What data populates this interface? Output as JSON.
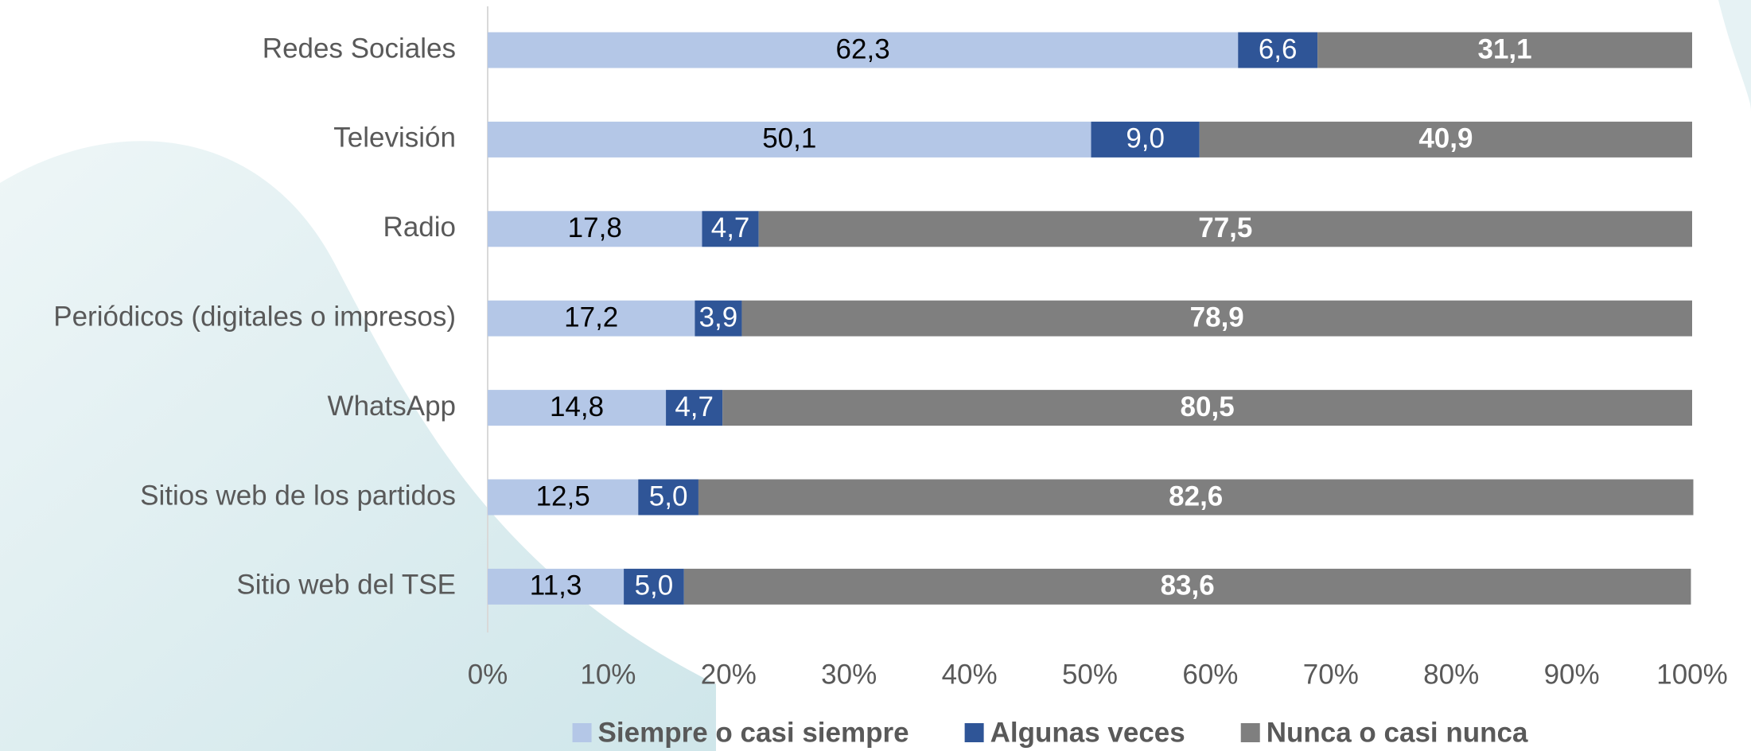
{
  "chart_data": {
    "type": "stacked-bar-horizontal",
    "categories": [
      "Redes Sociales",
      "Televisión",
      "Radio",
      "Periódicos (digitales o impresos)",
      "WhatsApp",
      "Sitios web de los partidos",
      "Sitio web del TSE"
    ],
    "series": [
      {
        "name": "Siempre o casi siempre",
        "color": "#b4c7e7",
        "values": [
          62.3,
          50.1,
          17.8,
          17.2,
          14.8,
          12.5,
          11.3
        ],
        "value_labels": [
          "62,3",
          "50,1",
          "17,8",
          "17,2",
          "14,8",
          "12,5",
          "11,3"
        ]
      },
      {
        "name": "Algunas veces",
        "color": "#2f5597",
        "values": [
          6.6,
          9.0,
          4.7,
          3.9,
          4.7,
          5.0,
          5.0
        ],
        "value_labels": [
          "6,6",
          "9,0",
          "4,7",
          "3,9",
          "4,7",
          "5,0",
          "5,0"
        ]
      },
      {
        "name": "Nunca o casi nunca",
        "color": "#7f7f7f",
        "values": [
          31.1,
          40.9,
          77.5,
          78.9,
          80.5,
          82.6,
          83.6
        ],
        "value_labels": [
          "31,1",
          "40,9",
          "77,5",
          "78,9",
          "80,5",
          "82,6",
          "83,6"
        ]
      }
    ],
    "xlim": [
      0,
      100
    ],
    "xticks": [
      {
        "value": 0,
        "label": "0%"
      },
      {
        "value": 10,
        "label": "10%"
      },
      {
        "value": 20,
        "label": "20%"
      },
      {
        "value": 30,
        "label": "30%"
      },
      {
        "value": 40,
        "label": "40%"
      },
      {
        "value": 50,
        "label": "50%"
      },
      {
        "value": 60,
        "label": "60%"
      },
      {
        "value": 70,
        "label": "70%"
      },
      {
        "value": 80,
        "label": "80%"
      },
      {
        "value": 90,
        "label": "90%"
      },
      {
        "value": 100,
        "label": "100%"
      }
    ],
    "legend": "bottom"
  }
}
